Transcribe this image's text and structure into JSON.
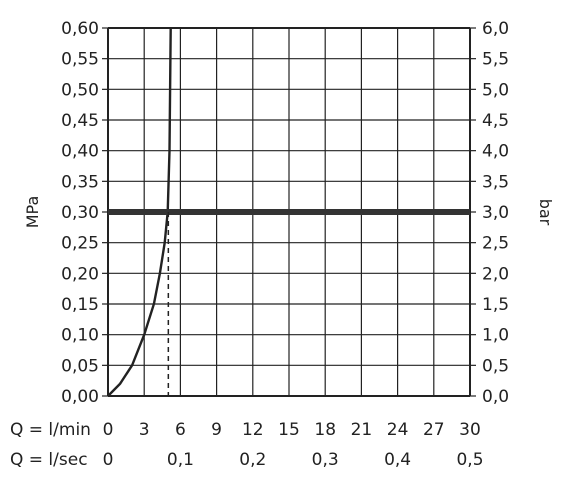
{
  "chart_data": {
    "type": "line",
    "ylabel_left": "MPa",
    "ylabel_right": "bar",
    "ylim_left": [
      0,
      0.6
    ],
    "ylim_right": [
      0,
      6.0
    ],
    "xlim_lmin": [
      0,
      30
    ],
    "yticks_left": [
      "0,00",
      "0,05",
      "0,10",
      "0,15",
      "0,20",
      "0,25",
      "0,30",
      "0,35",
      "0,40",
      "0,45",
      "0,50",
      "0,55",
      "0,60"
    ],
    "yticks_right": [
      "0,0",
      "0,5",
      "1,0",
      "1,5",
      "2,0",
      "2,5",
      "3,0",
      "3,5",
      "4,0",
      "4,5",
      "5,0",
      "5,5",
      "6,0"
    ],
    "x_row1": {
      "label": "Q = l/min",
      "ticks": [
        {
          "v": 0,
          "t": "0"
        },
        {
          "v": 3,
          "t": "3"
        },
        {
          "v": 6,
          "t": "6"
        },
        {
          "v": 9,
          "t": "9"
        },
        {
          "v": 12,
          "t": "12"
        },
        {
          "v": 15,
          "t": "15"
        },
        {
          "v": 18,
          "t": "18"
        },
        {
          "v": 21,
          "t": "21"
        },
        {
          "v": 24,
          "t": "24"
        },
        {
          "v": 27,
          "t": "27"
        },
        {
          "v": 30,
          "t": "30"
        }
      ]
    },
    "x_row2": {
      "label": "Q = l/sec",
      "ticks": [
        {
          "v": 0,
          "t": "0"
        },
        {
          "v": 6,
          "t": "0,1"
        },
        {
          "v": 12,
          "t": "0,2"
        },
        {
          "v": 18,
          "t": "0,3"
        },
        {
          "v": 24,
          "t": "0,4"
        },
        {
          "v": 30,
          "t": "0,5"
        }
      ]
    },
    "curve": {
      "x_lmin": [
        0,
        1,
        2,
        3,
        3.8,
        4.3,
        4.7,
        4.95,
        5.1,
        5.15,
        5.2
      ],
      "y_mpa": [
        0,
        0.02,
        0.05,
        0.1,
        0.15,
        0.2,
        0.25,
        0.3,
        0.4,
        0.5,
        0.6
      ]
    },
    "reference_line": {
      "y_mpa": 0.3
    },
    "drop_line": {
      "x_lmin": 5.0
    }
  }
}
